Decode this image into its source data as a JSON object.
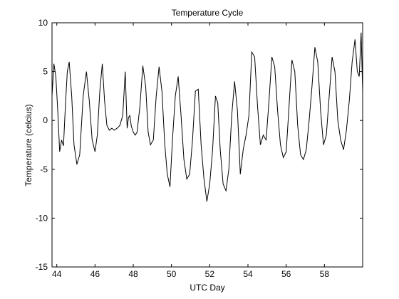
{
  "chart_data": {
    "type": "line",
    "title": "Temperature Cycle",
    "xlabel": "UTC Day",
    "ylabel": "Temperature (celcius)",
    "xlim": [
      43.75,
      60.0
    ],
    "ylim": [
      -15,
      10
    ],
    "xticks": [
      44,
      46,
      48,
      50,
      52,
      54,
      56,
      58
    ],
    "xtick_labels": [
      "44",
      "46",
      "48",
      "50",
      "52",
      "54",
      "56",
      "58"
    ],
    "yticks": [
      -15,
      -10,
      -5,
      0,
      5,
      10
    ],
    "ytick_labels": [
      "-15",
      "-10",
      "-5",
      "0",
      "5",
      "10"
    ],
    "grid": false,
    "line_color": "#000000",
    "series": [
      {
        "x": [
          43.75,
          43.85,
          43.95,
          44.05,
          44.15,
          44.25,
          44.35,
          44.45,
          44.55,
          44.65,
          44.78,
          44.9,
          45.05,
          45.2,
          45.38,
          45.55,
          45.7,
          45.85,
          46.0,
          46.12,
          46.25,
          46.38,
          46.5,
          46.62,
          46.75,
          46.88,
          47.0,
          47.15,
          47.3,
          47.45,
          47.58,
          47.68,
          47.75,
          47.82,
          47.9,
          48.0,
          48.1,
          48.2,
          48.35,
          48.5,
          48.65,
          48.78,
          48.9,
          49.05,
          49.2,
          49.35,
          49.5,
          49.65,
          49.78,
          49.92,
          50.05,
          50.2,
          50.35,
          50.5,
          50.65,
          50.8,
          50.95,
          51.1,
          51.25,
          51.4,
          51.55,
          51.7,
          51.85,
          52.0,
          52.15,
          52.3,
          52.42,
          52.55,
          52.7,
          52.85,
          53.0,
          53.15,
          53.3,
          53.45,
          53.6,
          53.75,
          53.9,
          54.05,
          54.2,
          54.35,
          54.5,
          54.65,
          54.8,
          54.95,
          55.1,
          55.25,
          55.4,
          55.55,
          55.7,
          55.85,
          56.0,
          56.15,
          56.3,
          56.45,
          56.6,
          56.75,
          56.9,
          57.05,
          57.2,
          57.35,
          57.5,
          57.65,
          57.8,
          57.95,
          58.1,
          58.25,
          58.4,
          58.55,
          58.7,
          58.85,
          59.0,
          59.15,
          59.3,
          59.45,
          59.6,
          59.72,
          59.82,
          59.92,
          60.0
        ],
        "y": [
          2.5,
          5.8,
          4.5,
          1.0,
          -3.2,
          -2.0,
          -2.6,
          1.5,
          5.0,
          6.0,
          2.5,
          -2.5,
          -4.5,
          -3.5,
          2.5,
          5.0,
          2.0,
          -2.0,
          -3.2,
          -1.5,
          3.0,
          5.8,
          2.0,
          -0.5,
          -1.0,
          -0.8,
          -1.0,
          -0.8,
          -0.5,
          0.5,
          5.0,
          -0.8,
          0.3,
          0.5,
          -0.6,
          -1.2,
          -1.5,
          -1.2,
          1.5,
          5.6,
          3.5,
          -1.2,
          -2.5,
          -2.0,
          2.5,
          5.5,
          3.0,
          -2.5,
          -5.5,
          -6.8,
          -2.0,
          2.5,
          4.5,
          0.5,
          -4.0,
          -6.0,
          -5.5,
          -2.0,
          3.0,
          3.2,
          -2.5,
          -6.0,
          -8.3,
          -6.5,
          -3.0,
          2.5,
          1.8,
          -3.0,
          -6.5,
          -7.2,
          -5.0,
          0.5,
          4.0,
          1.0,
          -5.5,
          -3.0,
          -1.5,
          0.5,
          7.0,
          6.5,
          1.5,
          -2.5,
          -1.5,
          -2.0,
          2.0,
          6.5,
          5.5,
          1.0,
          -2.5,
          -3.8,
          -3.2,
          1.5,
          6.2,
          5.0,
          -0.5,
          -3.5,
          -4.0,
          -3.0,
          0.0,
          3.5,
          7.5,
          6.0,
          1.0,
          -2.5,
          -1.5,
          2.5,
          6.5,
          5.0,
          0.0,
          -2.0,
          -3.0,
          -1.0,
          2.0,
          6.0,
          8.3,
          5.0,
          4.5,
          9.0,
          3.0
        ]
      }
    ]
  }
}
